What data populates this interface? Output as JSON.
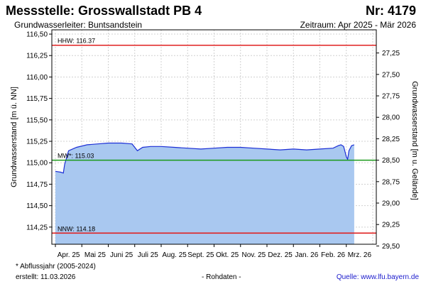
{
  "header": {
    "title": "Messstelle: Grosswallstadt PB 4",
    "number": "Nr: 4179",
    "aquifer": "Grundwasserleiter: Buntsandstein",
    "period": "Zeitraum: Apr 2025 - Mär 2026"
  },
  "footer": {
    "footnote": "* Abflussjahr (2005-2024)",
    "created": "erstellt:  11.03.2026",
    "rawdata": "- Rohdaten -",
    "source": "Quelle:  www.lfu.bayern.de"
  },
  "colors": {
    "fill": "#a9c8f0",
    "line": "#1c2fd6",
    "hhw": "#e02020",
    "mw": "#1a9a1a",
    "nnw": "#e02020",
    "grid": "#d0d0d0"
  },
  "chart_data": {
    "type": "area",
    "ylabel": "Grundwasserstand [m ü. NN]",
    "y2label": "Grundwasserstand [m u. Gelände]",
    "ylim": [
      114.05,
      116.55
    ],
    "yticks": [
      "116,50",
      "116,25",
      "116,00",
      "115,75",
      "115,50",
      "115,25",
      "115,00",
      "114,75",
      "114,50",
      "114,25"
    ],
    "ytick_values": [
      116.5,
      116.25,
      116.0,
      115.75,
      115.5,
      115.25,
      115.0,
      114.75,
      114.5,
      114.25
    ],
    "y2ticks": [
      "27,25",
      "27,50",
      "27,75",
      "28,00",
      "28,25",
      "28,50",
      "28,75",
      "29,00",
      "29,25",
      "29,50"
    ],
    "y2tick_values": [
      27.25,
      27.5,
      27.75,
      28.0,
      28.25,
      28.5,
      28.75,
      29.0,
      29.25,
      29.5
    ],
    "y2_reference_sum": 143.53,
    "x_months": [
      "Apr. 25",
      "Mai 25",
      "Juni 25",
      "Juli 25",
      "Aug. 25",
      "Sept. 25",
      "Okt. 25",
      "Nov. 25",
      "Dez. 25",
      "Jan. 26",
      "Feb. 26",
      "Mrz. 26"
    ],
    "reference_lines": [
      {
        "label": "HHW: 116.37",
        "value": 116.37,
        "color_key": "hhw"
      },
      {
        "label": "MW*: 115.03",
        "value": 115.03,
        "color_key": "mw"
      },
      {
        "label": "NNW: 114.18",
        "value": 114.18,
        "color_key": "nnw"
      }
    ],
    "series": [
      {
        "x": [
          0.0,
          0.2,
          0.3,
          0.35,
          0.5,
          0.8,
          1.2,
          1.6,
          2.0,
          2.5,
          2.9,
          3.1,
          3.3,
          3.6,
          4.0,
          4.5,
          5.0,
          5.5,
          6.0,
          6.5,
          7.0,
          7.5,
          8.0,
          8.5,
          9.0,
          9.5,
          10.0,
          10.5,
          10.7,
          10.8,
          10.9,
          11.0,
          11.05,
          11.1,
          11.2,
          11.3
        ],
        "values": [
          114.9,
          114.89,
          114.88,
          114.98,
          115.14,
          115.18,
          115.21,
          115.22,
          115.23,
          115.23,
          115.22,
          115.14,
          115.18,
          115.19,
          115.19,
          115.18,
          115.17,
          115.16,
          115.17,
          115.18,
          115.18,
          115.17,
          115.16,
          115.15,
          115.16,
          115.15,
          115.16,
          115.17,
          115.2,
          115.21,
          115.19,
          115.07,
          115.04,
          115.14,
          115.2,
          115.21
        ]
      }
    ]
  }
}
